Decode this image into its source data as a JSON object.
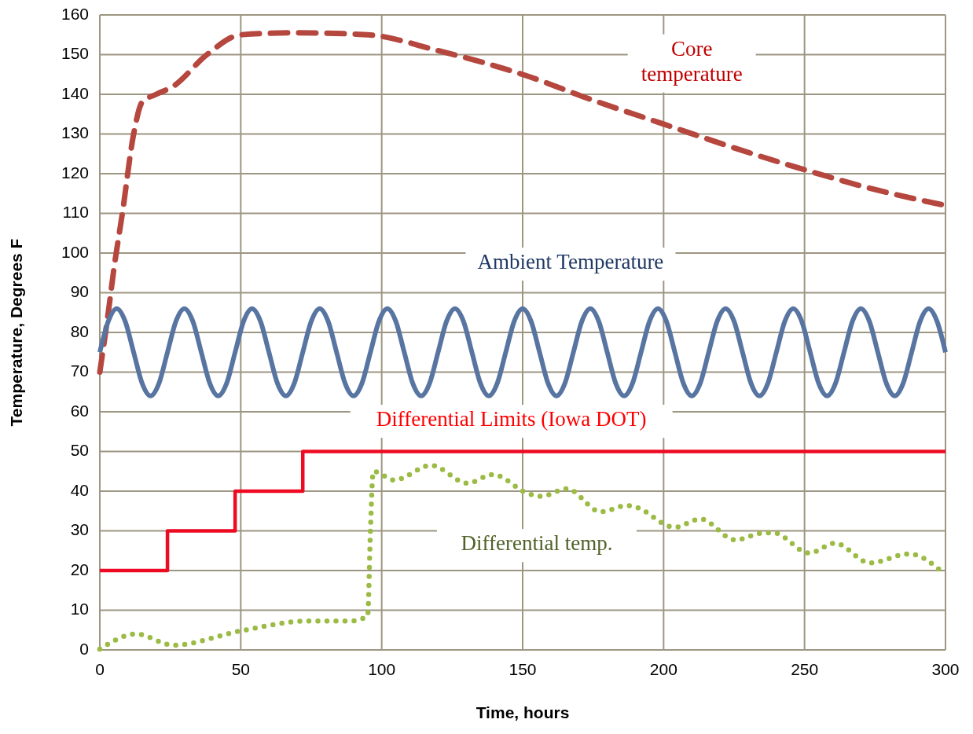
{
  "chart_data": {
    "type": "line",
    "xlabel": "Time, hours",
    "ylabel": "Temperature, Degrees F",
    "xlim": [
      0,
      300
    ],
    "xticks": [
      0,
      50,
      100,
      150,
      200,
      250,
      300
    ],
    "ylim": [
      0,
      160
    ],
    "yticks": [
      0,
      10,
      20,
      30,
      40,
      50,
      60,
      70,
      80,
      90,
      100,
      110,
      120,
      130,
      140,
      150,
      160
    ],
    "grid": true,
    "series": [
      {
        "name": "Core\ntemperature",
        "color": "#b5473f",
        "line_style": "dashed",
        "x": [
          0,
          3,
          5,
          8,
          12,
          15,
          20,
          26,
          38,
          50,
          70,
          95,
          120,
          150,
          175,
          200,
          225,
          250,
          275,
          300
        ],
        "values": [
          70,
          85,
          96,
          110,
          130,
          138,
          140,
          142,
          150,
          155,
          155.5,
          155,
          151,
          145,
          138.5,
          132.5,
          126.5,
          121,
          116,
          112
        ]
      },
      {
        "name": "Ambient Temperature",
        "color": "#5875a2",
        "line_style": "solid",
        "x": [
          0,
          3,
          6,
          9,
          12,
          15,
          18,
          21,
          24,
          27,
          30,
          33,
          36,
          39,
          42,
          45,
          48,
          51,
          54,
          57,
          60,
          63,
          66,
          69,
          72,
          75,
          78,
          81,
          84,
          87,
          90,
          93,
          96,
          99,
          102,
          105,
          108,
          111,
          114,
          117,
          120,
          123,
          126,
          129,
          132,
          135,
          138,
          141,
          144,
          147,
          150,
          153,
          156,
          159,
          162,
          165,
          168,
          171,
          174,
          177,
          180,
          183,
          186,
          189,
          192,
          195,
          198,
          201,
          204,
          207,
          210,
          213,
          216,
          219,
          222,
          225,
          228,
          231,
          234,
          237,
          240,
          243,
          246,
          249,
          252,
          255,
          258,
          261,
          264,
          267,
          270,
          273,
          276,
          279,
          282,
          285,
          288,
          291,
          294,
          297,
          300
        ],
        "values": [
          75,
          82.8,
          86,
          82.8,
          75,
          67.2,
          64,
          67.2,
          75,
          82.8,
          86,
          82.8,
          75,
          67.2,
          64,
          67.2,
          75,
          82.8,
          86,
          82.8,
          75,
          67.2,
          64,
          67.2,
          75,
          82.8,
          86,
          82.8,
          75,
          67.2,
          64,
          67.2,
          75,
          82.8,
          86,
          82.8,
          75,
          67.2,
          64,
          67.2,
          75,
          82.8,
          86,
          82.8,
          75,
          67.2,
          64,
          67.2,
          75,
          82.8,
          86,
          82.8,
          75,
          67.2,
          64,
          67.2,
          75,
          82.8,
          86,
          82.8,
          75,
          67.2,
          64,
          67.2,
          75,
          82.8,
          86,
          82.8,
          75,
          67.2,
          64,
          67.2,
          75,
          82.8,
          86,
          82.8,
          75,
          67.2,
          64,
          67.2,
          75,
          82.8,
          86,
          82.8,
          75,
          67.2,
          64,
          67.2,
          75,
          82.8,
          86,
          82.8,
          75,
          67.2,
          64,
          67.2,
          75,
          82.8,
          86,
          82.8,
          75
        ]
      },
      {
        "name": "Differential Limits (Iowa DOT)",
        "type": "step",
        "color": "#ee0a22",
        "line_style": "solid",
        "x": [
          0,
          24,
          48,
          72,
          300
        ],
        "values": [
          20,
          30,
          40,
          50,
          50
        ]
      },
      {
        "name": "Differential temp.",
        "color": "#9bbb44",
        "line_style": "dotted",
        "x": [
          0,
          13,
          26,
          50,
          74,
          89,
          95,
          96,
          97,
          104.5,
          117.5,
          130.5,
          139.4,
          152,
          156.6,
          165.7,
          177.7,
          187,
          190,
          204,
          213,
          225.4,
          234.7,
          239,
          251.7,
          260.8,
          273.2,
          287,
          299.6
        ],
        "values": [
          0.2,
          4,
          1.2,
          4.8,
          7.3,
          7.3,
          8.5,
          30,
          45,
          42.8,
          46.5,
          42,
          44.2,
          39.4,
          38.7,
          40.6,
          34.8,
          36.4,
          36,
          30.9,
          33,
          27.7,
          29.4,
          29.5,
          24.4,
          26.9,
          21.9,
          24.2,
          19.2
        ]
      }
    ]
  }
}
